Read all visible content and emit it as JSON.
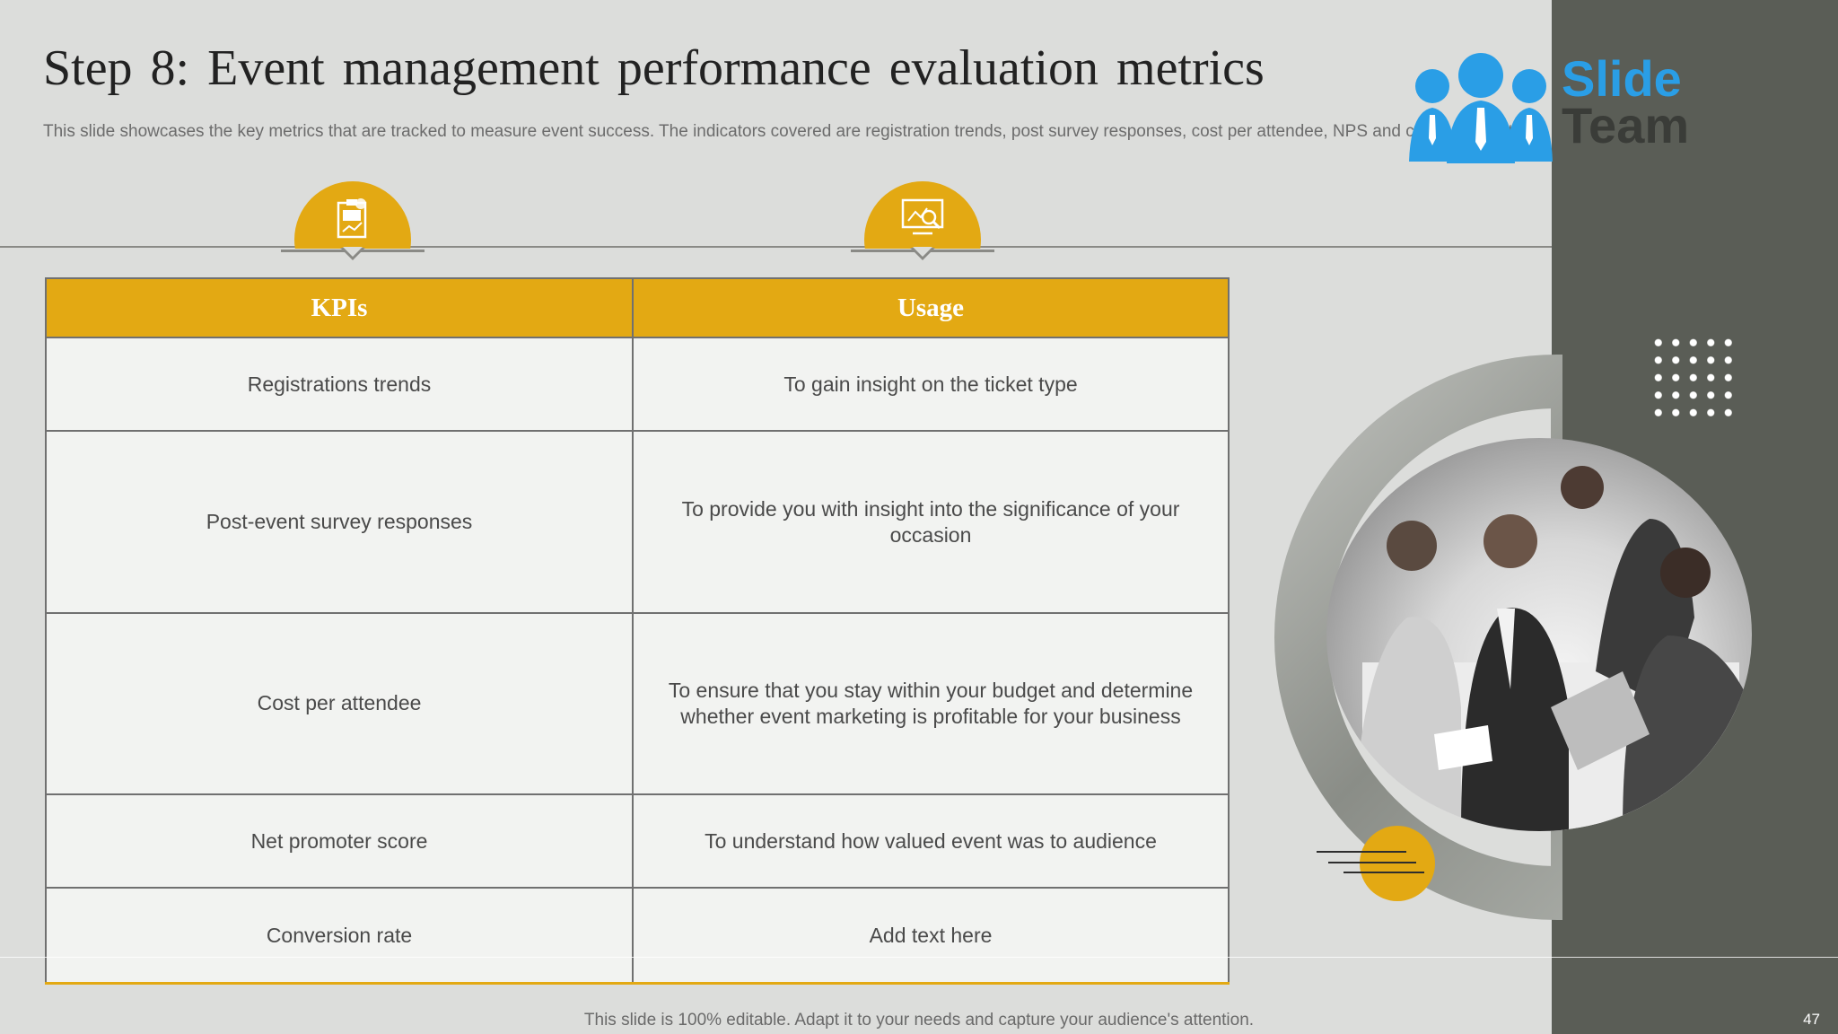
{
  "slide": {
    "title": "Step 8: Event management performance evaluation metrics",
    "subtitle": "This slide showcases the key metrics that are tracked to measure event success. The indicators covered are registration trends, post survey responses, cost per attendee, NPS and conversion rate.",
    "footer": "This slide is 100% editable. Adapt it to your needs and capture your audience's attention.",
    "page_number": "47"
  },
  "logo": {
    "line1": "Slide",
    "line2": "Team"
  },
  "icons": {
    "kpi_badge": "clipboard-chart-icon",
    "usage_badge": "presentation-analysis-icon",
    "logo": "team-people-icon"
  },
  "colors": {
    "accent": "#e3a913",
    "panel": "#5a5d56",
    "background": "#dcdddb",
    "logo_blue": "#2a9ee6"
  },
  "table": {
    "headers": [
      "KPIs",
      "Usage"
    ],
    "rows": [
      {
        "kpi": "Registrations trends",
        "usage": "To gain insight on the ticket type"
      },
      {
        "kpi": "Post-event survey responses",
        "usage": "To provide you with insight into the significance of your occasion"
      },
      {
        "kpi": "Cost per attendee",
        "usage": "To ensure that you stay within your budget and determine whether event marketing is profitable for your business"
      },
      {
        "kpi": "Net promoter score",
        "usage": "To understand how valued event was to audience"
      },
      {
        "kpi": "Conversion rate",
        "usage": "Add text here"
      }
    ]
  }
}
